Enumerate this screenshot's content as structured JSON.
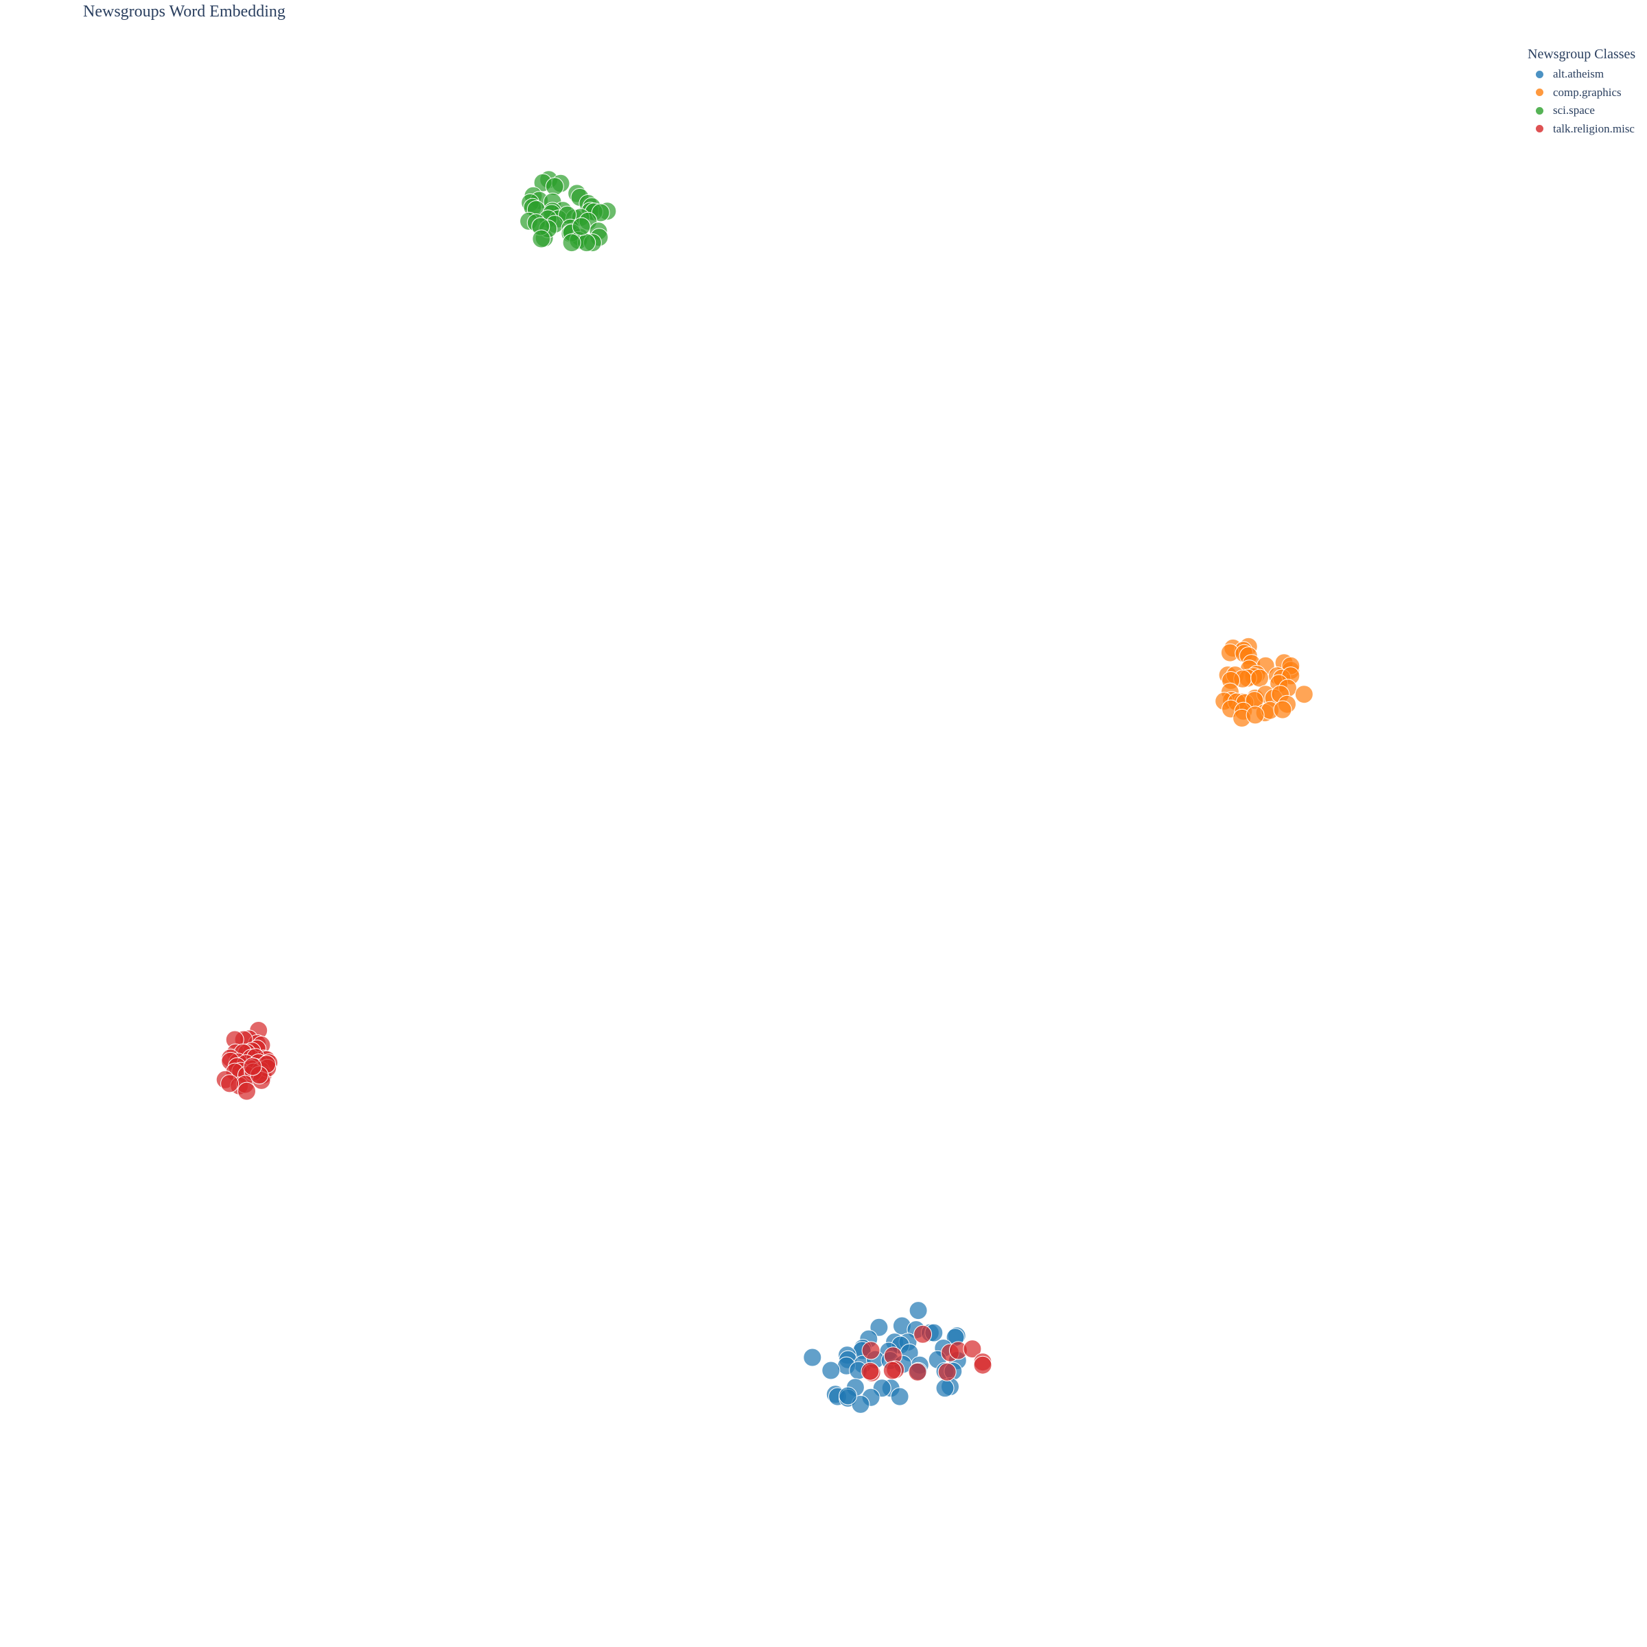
{
  "chart_data": {
    "type": "scatter",
    "title": "Newsgroups Word Embedding",
    "xlabel": "",
    "ylabel": "",
    "xlim": [
      -10,
      10
    ],
    "ylim": [
      -10,
      10
    ],
    "grid": false,
    "axes_visible": false,
    "legend": {
      "title": "Newsgroup Classes",
      "position": "top-right"
    },
    "series": [
      {
        "name": "alt.atheism",
        "color": "#1f77b4",
        "points": [
          [
            1.28,
            -6.33
          ],
          [
            0.75,
            -6.55
          ],
          [
            1.06,
            -6.53
          ],
          [
            1.25,
            -6.58
          ],
          [
            1.44,
            -6.62
          ],
          [
            1.49,
            -6.62
          ],
          [
            1.8,
            -6.66
          ],
          [
            1.78,
            -6.68
          ],
          [
            0.61,
            -6.7
          ],
          [
            0.96,
            -6.74
          ],
          [
            1.14,
            -6.74
          ],
          [
            1.04,
            -6.78
          ],
          [
            0.53,
            -6.82
          ],
          [
            0.52,
            -6.85
          ],
          [
            0.88,
            -6.86
          ],
          [
            1.62,
            -6.82
          ],
          [
            1.16,
            -6.88
          ],
          [
            -0.15,
            -6.94
          ],
          [
            0.32,
            -6.91
          ],
          [
            0.33,
            -6.97
          ],
          [
            0.53,
            -7.03
          ],
          [
            0.7,
            -6.97
          ],
          [
            0.9,
            -6.98
          ],
          [
            1.54,
            -6.97
          ],
          [
            1.81,
            -6.98
          ],
          [
            1.3,
            -7.04
          ],
          [
            1.07,
            -7.03
          ],
          [
            0.31,
            -7.05
          ],
          [
            0.47,
            -7.11
          ],
          [
            0.1,
            -7.11
          ],
          [
            1.28,
            -7.12
          ],
          [
            1.64,
            -7.12
          ],
          [
            1.75,
            -7.12
          ],
          [
            0.43,
            -7.33
          ],
          [
            0.91,
            -7.34
          ],
          [
            1.71,
            -7.32
          ],
          [
            1.64,
            -7.34
          ],
          [
            0.16,
            -7.42
          ],
          [
            0.19,
            -7.45
          ],
          [
            0.79,
            -7.34
          ],
          [
            0.33,
            -7.47
          ],
          [
            0.64,
            -7.46
          ],
          [
            1.03,
            -7.45
          ],
          [
            0.5,
            -7.55
          ],
          [
            0.33,
            -7.44
          ]
        ]
      },
      {
        "name": "comp.graphics",
        "color": "#ff7f0e",
        "points": [
          [
            5.53,
            2.28
          ],
          [
            5.74,
            2.3
          ],
          [
            5.67,
            2.25
          ],
          [
            5.49,
            2.22
          ],
          [
            5.68,
            2.21
          ],
          [
            5.74,
            2.18
          ],
          [
            5.78,
            2.08
          ],
          [
            5.97,
            2.05
          ],
          [
            6.22,
            2.09
          ],
          [
            6.31,
            1.99
          ],
          [
            5.75,
            2.01
          ],
          [
            6.31,
            2.05
          ],
          [
            6.13,
            1.92
          ],
          [
            5.85,
            1.94
          ],
          [
            5.81,
            1.91
          ],
          [
            6.19,
            1.89
          ],
          [
            6.31,
            1.92
          ],
          [
            5.46,
            1.93
          ],
          [
            5.56,
            1.93
          ],
          [
            5.73,
            1.89
          ],
          [
            5.66,
            1.88
          ],
          [
            5.89,
            1.89
          ],
          [
            5.5,
            1.86
          ],
          [
            6.15,
            1.82
          ],
          [
            6.27,
            1.76
          ],
          [
            5.49,
            1.71
          ],
          [
            6.49,
            1.68
          ],
          [
            5.83,
            1.63
          ],
          [
            5.97,
            1.68
          ],
          [
            6.08,
            1.63
          ],
          [
            6.17,
            1.68
          ],
          [
            5.51,
            1.6
          ],
          [
            5.41,
            1.59
          ],
          [
            5.66,
            1.58
          ],
          [
            5.58,
            1.58
          ],
          [
            5.69,
            1.57
          ],
          [
            6.26,
            1.55
          ],
          [
            5.82,
            1.6
          ],
          [
            5.5,
            1.49
          ],
          [
            5.67,
            1.46
          ],
          [
            5.96,
            1.44
          ],
          [
            6.03,
            1.47
          ],
          [
            6.2,
            1.48
          ],
          [
            5.65,
            1.37
          ],
          [
            5.83,
            1.41
          ]
        ]
      },
      {
        "name": "sci.space",
        "color": "#2ca02c",
        "points": [
          [
            -3.71,
            8.37
          ],
          [
            -3.79,
            8.33
          ],
          [
            -3.55,
            8.32
          ],
          [
            -3.63,
            8.28
          ],
          [
            -3.33,
            8.19
          ],
          [
            -3.29,
            8.14
          ],
          [
            -3.92,
            8.16
          ],
          [
            -3.84,
            8.1
          ],
          [
            -3.66,
            8.08
          ],
          [
            -3.18,
            8.06
          ],
          [
            -3.13,
            8.02
          ],
          [
            -3.96,
            8.07
          ],
          [
            -3.15,
            7.96
          ],
          [
            -3.93,
            8.01
          ],
          [
            -3.52,
            7.97
          ],
          [
            -3.66,
            7.96
          ],
          [
            -2.92,
            7.96
          ],
          [
            -3.1,
            7.95
          ],
          [
            -3.88,
            7.98
          ],
          [
            -3.67,
            7.93
          ],
          [
            -3.58,
            7.86
          ],
          [
            -3.72,
            7.86
          ],
          [
            -3.36,
            7.87
          ],
          [
            -3.28,
            7.88
          ],
          [
            -3.46,
            7.91
          ],
          [
            -3.01,
            7.94
          ],
          [
            -3.98,
            7.83
          ],
          [
            -3.88,
            7.81
          ],
          [
            -3.63,
            7.79
          ],
          [
            -3.18,
            7.83
          ],
          [
            -3.42,
            7.74
          ],
          [
            -3.42,
            7.67
          ],
          [
            -3.29,
            7.62
          ],
          [
            -3.04,
            7.7
          ],
          [
            -3.4,
            7.68
          ],
          [
            -3.77,
            7.61
          ],
          [
            -3.31,
            7.58
          ],
          [
            -3.03,
            7.62
          ],
          [
            -3.12,
            7.55
          ],
          [
            -3.2,
            7.55
          ],
          [
            -3.72,
            7.73
          ],
          [
            -3.82,
            7.76
          ],
          [
            -3.4,
            7.55
          ],
          [
            -3.81,
            7.6
          ],
          [
            -3.27,
            7.76
          ]
        ]
      },
      {
        "name": "talk.religion.misc",
        "color": "#d62728",
        "points": [
          [
            -7.63,
            -2.69
          ],
          [
            -7.76,
            -2.8
          ],
          [
            -7.65,
            -2.86
          ],
          [
            -7.59,
            -2.88
          ],
          [
            -7.83,
            -2.81
          ],
          [
            -7.95,
            -2.81
          ],
          [
            -7.94,
            -2.98
          ],
          [
            -7.65,
            -2.93
          ],
          [
            -7.72,
            -2.96
          ],
          [
            -7.79,
            -2.98
          ],
          [
            -7.84,
            -2.98
          ],
          [
            -7.56,
            -3.06
          ],
          [
            -7.52,
            -3.07
          ],
          [
            -8.01,
            -3.05
          ],
          [
            -7.73,
            -3.05
          ],
          [
            -7.67,
            -3.04
          ],
          [
            -7.91,
            -3.1
          ],
          [
            -8.01,
            -3.09
          ],
          [
            -7.8,
            -3.12
          ],
          [
            -7.63,
            -3.11
          ],
          [
            -7.49,
            -3.11
          ],
          [
            -7.67,
            -3.17
          ],
          [
            -7.73,
            -3.19
          ],
          [
            -7.92,
            -3.16
          ],
          [
            -7.6,
            -3.21
          ],
          [
            -7.87,
            -3.22
          ],
          [
            -7.57,
            -3.27
          ],
          [
            -7.95,
            -3.23
          ],
          [
            -7.51,
            -3.18
          ],
          [
            -7.52,
            -3.13
          ],
          [
            -8.08,
            -3.33
          ],
          [
            -7.79,
            -3.27
          ],
          [
            -7.7,
            -3.23
          ],
          [
            -7.89,
            -3.41
          ],
          [
            -7.81,
            -3.39
          ],
          [
            -8.02,
            -3.38
          ],
          [
            -7.79,
            -3.48
          ],
          [
            -7.59,
            -3.34
          ],
          [
            -7.62,
            -3.27
          ],
          [
            -7.71,
            -3.16
          ],
          [
            1.34,
            -6.64
          ],
          [
            0.64,
            -6.85
          ],
          [
            0.94,
            -6.92
          ],
          [
            1.71,
            -6.88
          ],
          [
            1.82,
            -6.85
          ],
          [
            2.01,
            -6.83
          ],
          [
            2.15,
            -7.0
          ],
          [
            2.15,
            -7.04
          ],
          [
            0.97,
            -7.1
          ],
          [
            0.65,
            -7.14
          ],
          [
            0.63,
            -7.12
          ],
          [
            1.27,
            -7.13
          ],
          [
            1.67,
            -7.13
          ],
          [
            0.93,
            -7.11
          ]
        ]
      }
    ]
  }
}
